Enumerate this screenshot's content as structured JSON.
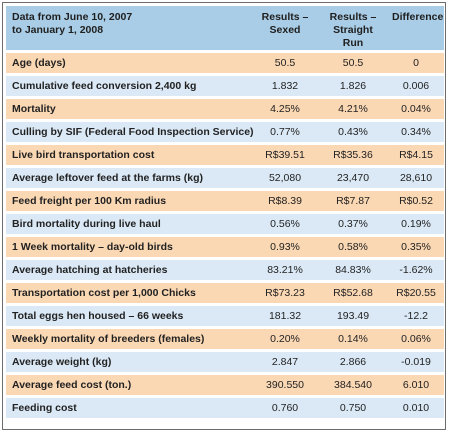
{
  "header": {
    "title_line1": "Data from June 10, 2007",
    "title_line2": "to January 1, 2008",
    "col_sexed_line1": "Results –",
    "col_sexed_line2": "Sexed",
    "col_straight_line1": "Results –",
    "col_straight_line2": "Straight Run",
    "col_difference": "Difference"
  },
  "rows": [
    {
      "label": "Age (days)",
      "sexed": "50.5",
      "straight": "50.5",
      "difference": "0"
    },
    {
      "label": "Cumulative feed conversion 2,400 kg",
      "sexed": "1.832",
      "straight": "1.826",
      "difference": "0.006"
    },
    {
      "label": "Mortality",
      "sexed": "4.25%",
      "straight": "4.21%",
      "difference": "0.04%"
    },
    {
      "label": "Culling by SIF (Federal Food Inspection Service)",
      "sexed": "0.77%",
      "straight": "0.43%",
      "difference": "0.34%"
    },
    {
      "label": "Live bird transportation cost",
      "sexed": "R$39.51",
      "straight": "R$35.36",
      "difference": "R$4.15"
    },
    {
      "label": "Average leftover feed at the farms (kg)",
      "sexed": "52,080",
      "straight": "23,470",
      "difference": "28,610"
    },
    {
      "label": "Feed freight per 100 Km radius",
      "sexed": "R$8.39",
      "straight": "R$7.87",
      "difference": "R$0.52"
    },
    {
      "label": "Bird mortality during live haul",
      "sexed": "0.56%",
      "straight": "0.37%",
      "difference": "0.19%"
    },
    {
      "label": "1 Week mortality – day-old birds",
      "sexed": "0.93%",
      "straight": "0.58%",
      "difference": "0.35%"
    },
    {
      "label": "Average hatching at hatcheries",
      "sexed": "83.21%",
      "straight": "84.83%",
      "difference": "-1.62%"
    },
    {
      "label": "Transportation cost per 1,000 Chicks",
      "sexed": "R$73.23",
      "straight": "R$52.68",
      "difference": "R$20.55"
    },
    {
      "label": "Total eggs hen housed – 66 weeks",
      "sexed": "181.32",
      "straight": "193.49",
      "difference": "-12.2"
    },
    {
      "label": "Weekly mortality of breeders (females)",
      "sexed": "0.20%",
      "straight": "0.14%",
      "difference": "0.06%"
    },
    {
      "label": "Average weight (kg)",
      "sexed": "2.847",
      "straight": "2.866",
      "difference": "-0.019"
    },
    {
      "label": "Average feed cost (ton.)",
      "sexed": "390.550",
      "straight": "384.540",
      "difference": "6.010"
    },
    {
      "label": "Feeding cost",
      "sexed": "0.760",
      "straight": "0.750",
      "difference": "0.010"
    }
  ],
  "colors": {
    "header": "#a9cde6",
    "row_orange": "#fbd8b4",
    "row_blue": "#dbe9f6"
  }
}
